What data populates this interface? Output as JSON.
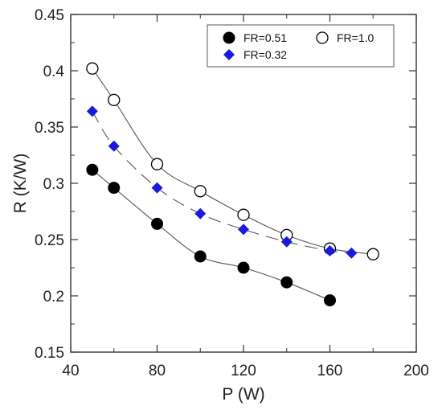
{
  "chart_data": {
    "type": "scatter",
    "xlabel": "P (W)",
    "ylabel": "R (K/W)",
    "xlim": [
      40,
      200
    ],
    "ylim": [
      0.15,
      0.45
    ],
    "x_ticks": [
      "40",
      "80",
      "120",
      "160",
      "200"
    ],
    "x_tick_values": [
      40,
      80,
      120,
      160,
      200
    ],
    "y_ticks": [
      "0.15",
      "0.2",
      "0.25",
      "0.3",
      "0.35",
      "0.4",
      "0.45"
    ],
    "y_tick_values": [
      0.15,
      0.2,
      0.25,
      0.3,
      0.35,
      0.4,
      0.45
    ],
    "grid": false,
    "legend_position": "top-right",
    "series": [
      {
        "name": "FR=0.51",
        "marker": "filled-circle",
        "color": "#000000",
        "line": "solid",
        "x": [
          50,
          60,
          80,
          100,
          120,
          140,
          160
        ],
        "y": [
          0.312,
          0.296,
          0.264,
          0.235,
          0.225,
          0.212,
          0.196
        ]
      },
      {
        "name": "FR=1.0",
        "marker": "open-circle",
        "color": "#000000",
        "line": "solid",
        "x": [
          50,
          60,
          80,
          100,
          120,
          140,
          160,
          180
        ],
        "y": [
          0.402,
          0.374,
          0.317,
          0.293,
          0.272,
          0.254,
          0.242,
          0.237
        ]
      },
      {
        "name": "FR=0.32",
        "marker": "diamond",
        "color": "#1a1adb",
        "line": "dashed",
        "x": [
          50,
          60,
          80,
          100,
          120,
          140,
          160,
          170
        ],
        "y": [
          0.364,
          0.333,
          0.296,
          0.273,
          0.259,
          0.248,
          0.24,
          0.238
        ]
      }
    ]
  }
}
